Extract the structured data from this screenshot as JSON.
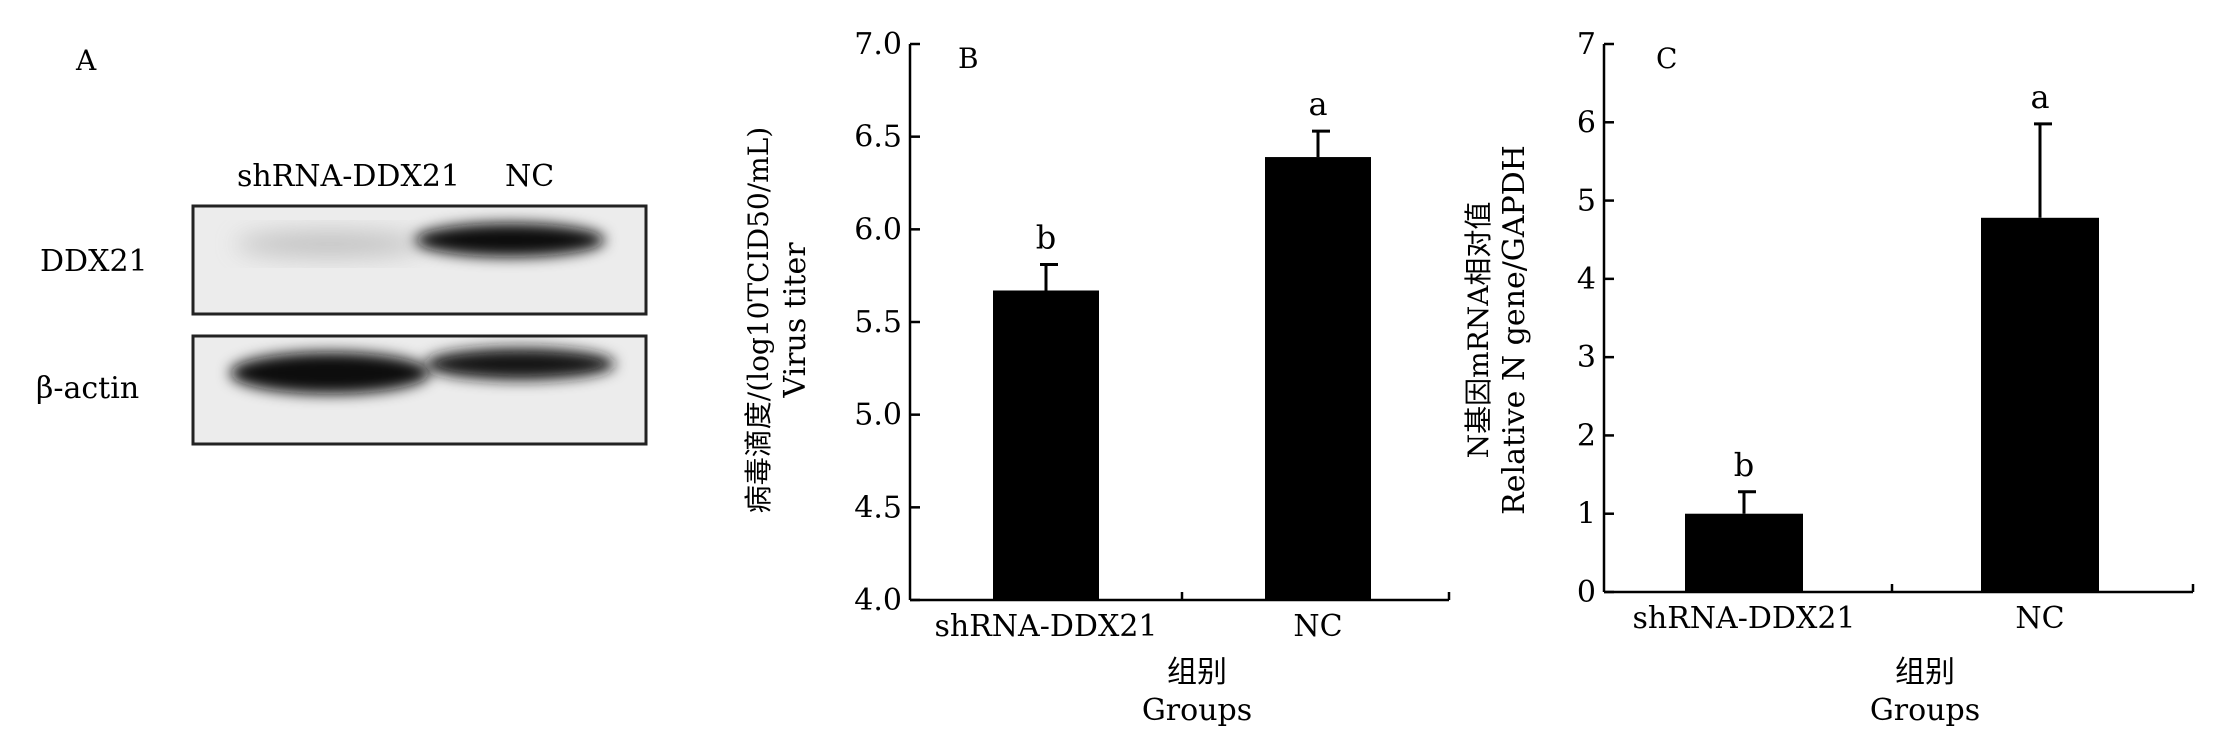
{
  "panel_a": {
    "panel_label": "A",
    "lane_labels": [
      "shRNA-DDX21",
      "NC"
    ],
    "rows": [
      {
        "label": "DDX21",
        "band_intensity": [
          0.15,
          0.95
        ]
      },
      {
        "label": "β-actin",
        "band_intensity": [
          1.0,
          0.9
        ]
      }
    ]
  },
  "chart_data": [
    {
      "type": "bar",
      "panel_label": "B",
      "categories": [
        "shRNA-DDX21",
        "NC"
      ],
      "values": [
        5.67,
        6.39
      ],
      "errors": [
        0.14,
        0.14
      ],
      "annotations": [
        "b",
        "a"
      ],
      "ylabel": [
        "病毒滴度/(log10TCID50/mL)",
        "Virus titer"
      ],
      "xlabel": [
        "组别",
        "Groups"
      ],
      "ylim": [
        4.0,
        7.0
      ],
      "yticks": [
        "4.0",
        "4.5",
        "5.0",
        "5.5",
        "6.0",
        "6.5",
        "7.0"
      ],
      "bar_color": "#000000"
    },
    {
      "type": "bar",
      "panel_label": "C",
      "categories": [
        "shRNA-DDX21",
        "NC"
      ],
      "values": [
        1.0,
        4.78
      ],
      "errors": [
        0.28,
        1.2
      ],
      "annotations": [
        "b",
        "a"
      ],
      "ylabel": [
        "N基因mRNA相对值",
        "Relative N gene/GAPDH"
      ],
      "xlabel": [
        "组别",
        "Groups"
      ],
      "ylim": [
        0,
        7
      ],
      "yticks": [
        "0",
        "1",
        "2",
        "3",
        "4",
        "5",
        "6",
        "7"
      ],
      "bar_color": "#000000"
    }
  ]
}
